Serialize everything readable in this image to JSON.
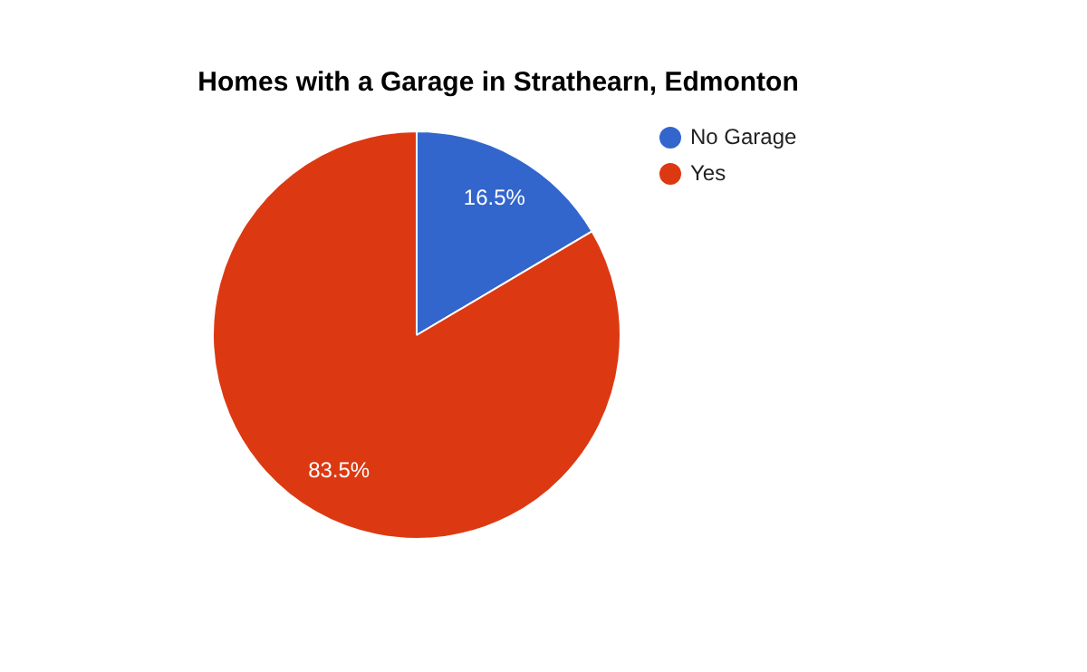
{
  "chart_data": {
    "type": "pie",
    "title": "Homes with a Garage in Strathearn, Edmonton",
    "categories": [
      "No Garage",
      "Yes"
    ],
    "values": [
      16.5,
      83.5
    ],
    "colors": [
      "#3366cc",
      "#dc3912"
    ],
    "value_labels": [
      "16.5%",
      "83.5%"
    ],
    "legend": "right"
  }
}
